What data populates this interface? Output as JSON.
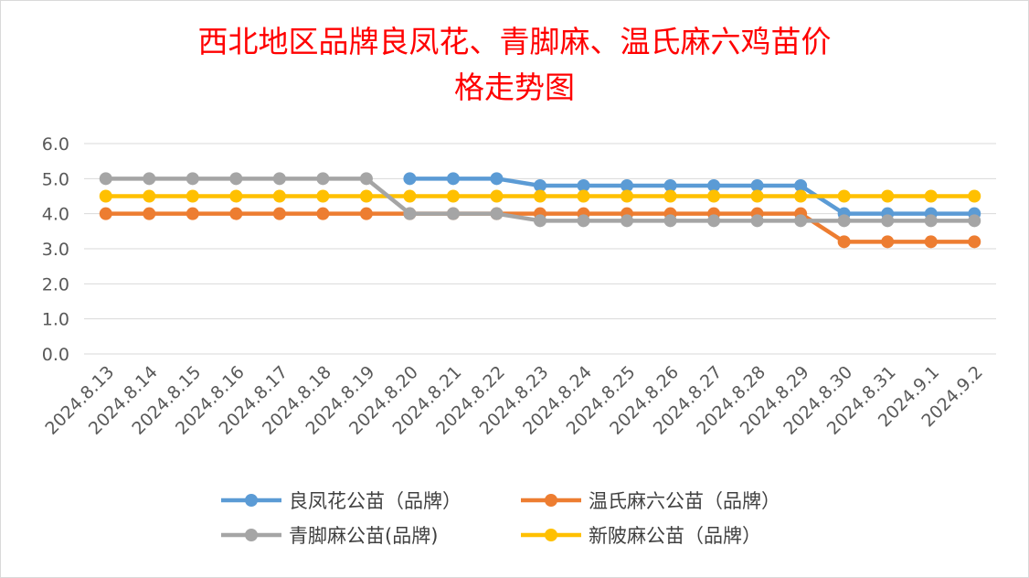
{
  "chart_data": {
    "type": "line",
    "title_lines": [
      "西北地区品牌良凤花、青脚麻、温氏麻六鸡苗价",
      "格走势图"
    ],
    "title_color": "#ff0000",
    "xlabel": "",
    "ylabel": "",
    "ylim": [
      0,
      6
    ],
    "yticks": [
      "0.0",
      "1.0",
      "2.0",
      "3.0",
      "4.0",
      "5.0",
      "6.0"
    ],
    "grid": true,
    "legend_position": "bottom",
    "categories": [
      "2024.8.13",
      "2024.8.14",
      "2024.8.15",
      "2024.8.16",
      "2024.8.17",
      "2024.8.18",
      "2024.8.19",
      "2024.8.20",
      "2024.8.21",
      "2024.8.22",
      "2024.8.23",
      "2024.8.24",
      "2024.8.25",
      "2024.8.26",
      "2024.8.27",
      "2024.8.28",
      "2024.8.29",
      "2024.8.30",
      "2024.8.31",
      "2024.9.1",
      "2024.9.2"
    ],
    "series": [
      {
        "name": "良凤花公苗（品牌）",
        "color": "#5b9bd5",
        "values": [
          null,
          null,
          null,
          null,
          null,
          null,
          null,
          5.0,
          5.0,
          5.0,
          4.8,
          4.8,
          4.8,
          4.8,
          4.8,
          4.8,
          4.8,
          4.0,
          4.0,
          4.0,
          4.0
        ]
      },
      {
        "name": "温氏麻六公苗（品牌）",
        "color": "#ed7d31",
        "values": [
          4.0,
          4.0,
          4.0,
          4.0,
          4.0,
          4.0,
          4.0,
          4.0,
          4.0,
          4.0,
          4.0,
          4.0,
          4.0,
          4.0,
          4.0,
          4.0,
          4.0,
          3.2,
          3.2,
          3.2,
          3.2
        ]
      },
      {
        "name": "青脚麻公苗(品牌)",
        "color": "#a5a5a5",
        "values": [
          5.0,
          5.0,
          5.0,
          5.0,
          5.0,
          5.0,
          5.0,
          4.0,
          4.0,
          4.0,
          3.8,
          3.8,
          3.8,
          3.8,
          3.8,
          3.8,
          3.8,
          3.8,
          3.8,
          3.8,
          3.8
        ]
      },
      {
        "name": "新陂麻公苗（品牌）",
        "color": "#ffc000",
        "values": [
          4.5,
          4.5,
          4.5,
          4.5,
          4.5,
          4.5,
          4.5,
          4.5,
          4.5,
          4.5,
          4.5,
          4.5,
          4.5,
          4.5,
          4.5,
          4.5,
          4.5,
          4.5,
          4.5,
          4.5,
          4.5
        ]
      }
    ],
    "draw_order": [
      0,
      1,
      3,
      2
    ]
  }
}
